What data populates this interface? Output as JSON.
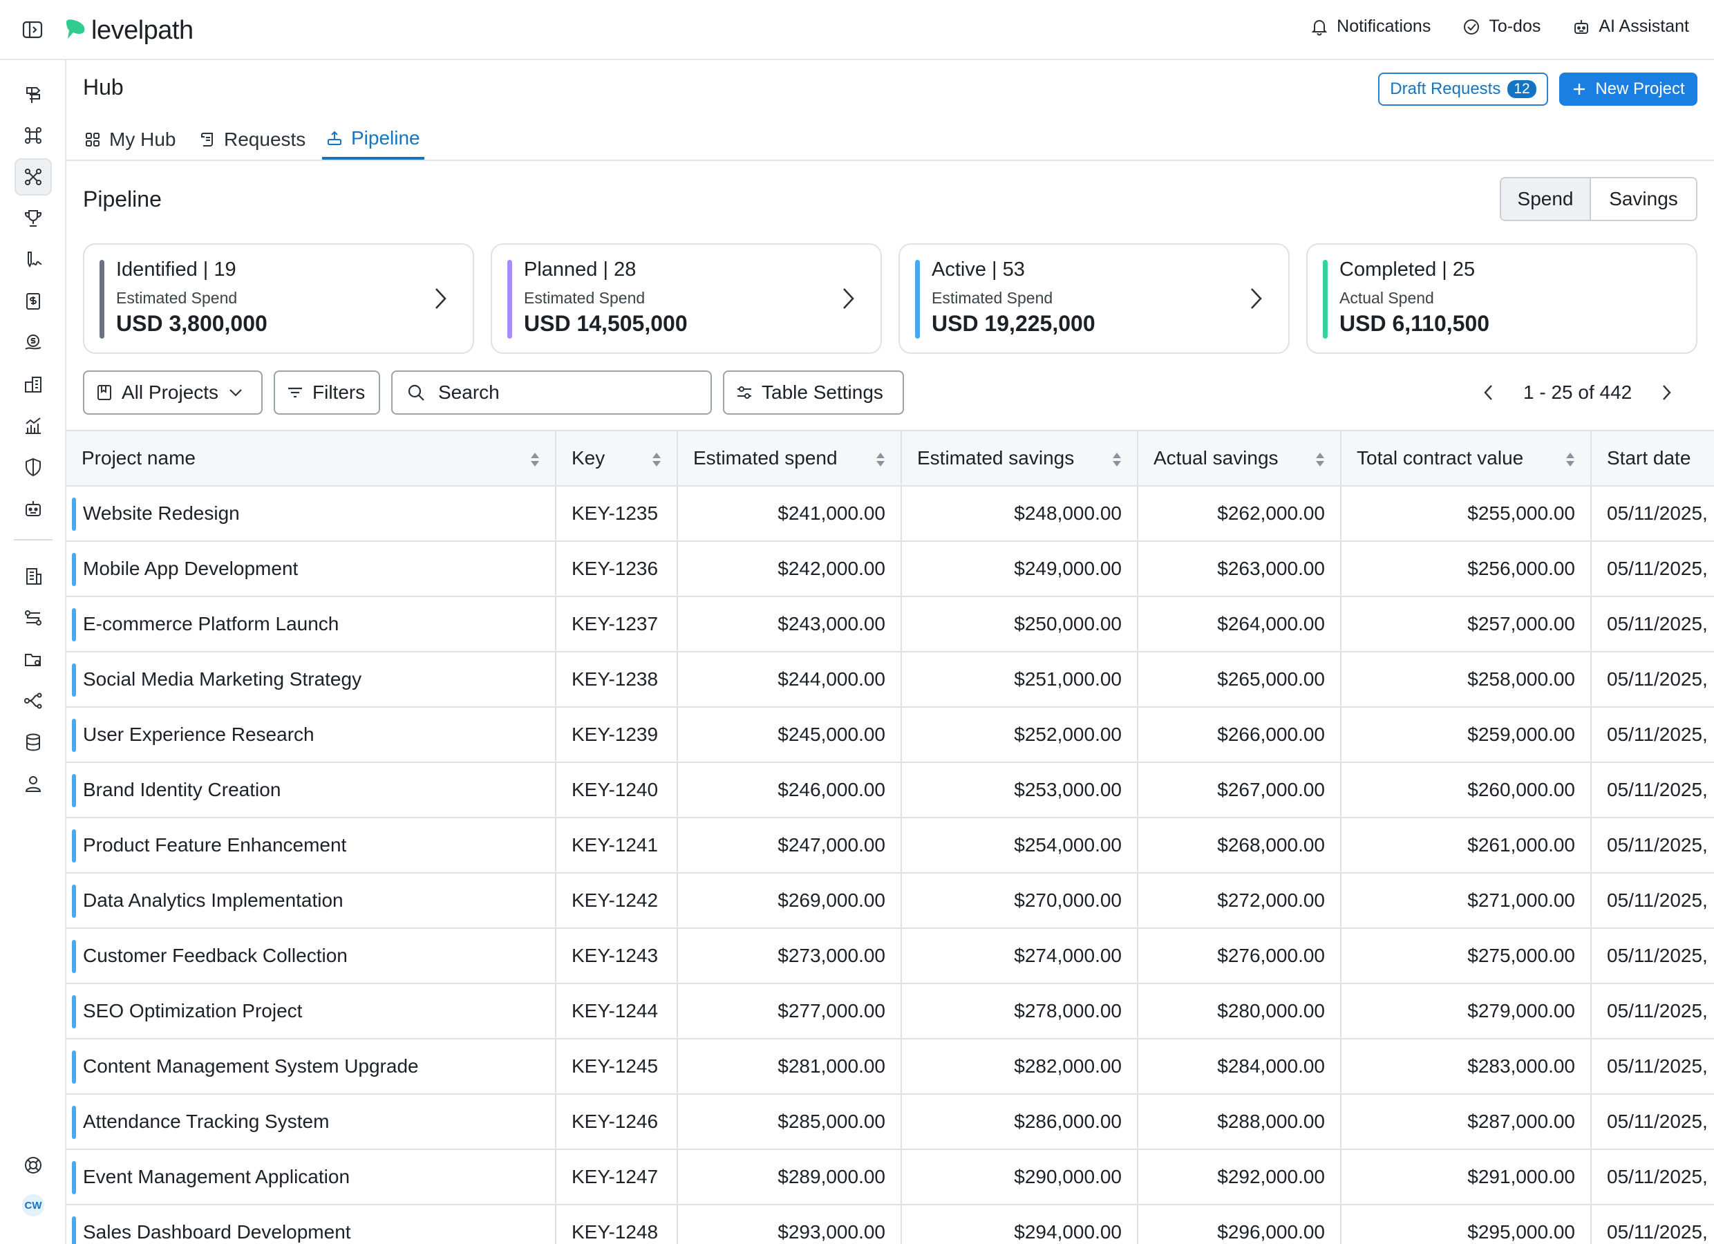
{
  "topbar": {
    "brand": "levelpath",
    "actions": [
      {
        "label": "Notifications",
        "icon": "bell-icon"
      },
      {
        "label": "To-dos",
        "icon": "check-circle-icon"
      },
      {
        "label": "AI Assistant",
        "icon": "robot-icon"
      }
    ]
  },
  "rail": {
    "avatar_initials": "CW",
    "items": [
      "signpost-icon",
      "hub-icon",
      "pipeline-hub-icon",
      "trophy-icon",
      "signature-icon",
      "invoice-icon",
      "spend-icon",
      "buildings-icon",
      "analytics-icon",
      "shield-icon",
      "bot-icon",
      "office-icon",
      "workflow-icon",
      "folder-settings-icon",
      "share-icon",
      "database-icon",
      "user-icon",
      "help-icon"
    ]
  },
  "header": {
    "title": "Hub",
    "draft_requests_label": "Draft Requests",
    "draft_requests_count": "12",
    "new_project_label": "New Project"
  },
  "tabs": [
    {
      "label": "My Hub",
      "icon": "grid-icon",
      "active": false
    },
    {
      "label": "Requests",
      "icon": "scroll-icon",
      "active": false
    },
    {
      "label": "Pipeline",
      "icon": "pipeline-icon",
      "active": true
    }
  ],
  "pipeline": {
    "title": "Pipeline",
    "toggle": {
      "options": [
        "Spend",
        "Savings"
      ],
      "selected": "Spend"
    },
    "cards": [
      {
        "title": "Identified | 19",
        "subtitle": "Estimated Spend",
        "value": "USD 3,800,000",
        "color": "#6b7280"
      },
      {
        "title": "Planned | 28",
        "subtitle": "Estimated Spend",
        "value": "USD 14,505,000",
        "color": "#a78bfa"
      },
      {
        "title": "Active | 53",
        "subtitle": "Estimated Spend",
        "value": "USD 19,225,000",
        "color": "#4aa8ea"
      },
      {
        "title": "Completed | 25",
        "subtitle": "Actual Spend",
        "value": "USD 6,110,500",
        "color": "#34d399"
      }
    ]
  },
  "toolbar": {
    "view_label": "All Projects",
    "filters_label": "Filters",
    "search_placeholder": "Search",
    "table_settings_label": "Table Settings",
    "pagination": "1 - 25 of 442"
  },
  "table": {
    "columns": [
      "Project name",
      "Key",
      "Estimated spend",
      "Estimated savings",
      "Actual savings",
      "Total contract value",
      "Start date"
    ],
    "rows": [
      [
        "Website Redesign",
        "KEY-1235",
        "$241,000.00",
        "$248,000.00",
        "$262,000.00",
        "$255,000.00",
        "05/11/2025,"
      ],
      [
        "Mobile App Development",
        "KEY-1236",
        "$242,000.00",
        "$249,000.00",
        "$263,000.00",
        "$256,000.00",
        "05/11/2025,"
      ],
      [
        "E-commerce Platform Launch",
        "KEY-1237",
        "$243,000.00",
        "$250,000.00",
        "$264,000.00",
        "$257,000.00",
        "05/11/2025,"
      ],
      [
        "Social Media Marketing Strategy",
        "KEY-1238",
        "$244,000.00",
        "$251,000.00",
        "$265,000.00",
        "$258,000.00",
        "05/11/2025,"
      ],
      [
        "User Experience Research",
        "KEY-1239",
        "$245,000.00",
        "$252,000.00",
        "$266,000.00",
        "$259,000.00",
        "05/11/2025,"
      ],
      [
        "Brand Identity Creation",
        "KEY-1240",
        "$246,000.00",
        "$253,000.00",
        "$267,000.00",
        "$260,000.00",
        "05/11/2025,"
      ],
      [
        "Product Feature Enhancement",
        "KEY-1241",
        "$247,000.00",
        "$254,000.00",
        "$268,000.00",
        "$261,000.00",
        "05/11/2025,"
      ],
      [
        "Data Analytics Implementation",
        "KEY-1242",
        "$269,000.00",
        "$270,000.00",
        "$272,000.00",
        "$271,000.00",
        "05/11/2025,"
      ],
      [
        "Customer Feedback Collection",
        "KEY-1243",
        "$273,000.00",
        "$274,000.00",
        "$276,000.00",
        "$275,000.00",
        "05/11/2025,"
      ],
      [
        "SEO Optimization Project",
        "KEY-1244",
        "$277,000.00",
        "$278,000.00",
        "$280,000.00",
        "$279,000.00",
        "05/11/2025,"
      ],
      [
        "Content Management System Upgrade",
        "KEY-1245",
        "$281,000.00",
        "$282,000.00",
        "$284,000.00",
        "$283,000.00",
        "05/11/2025,"
      ],
      [
        "Attendance Tracking System",
        "KEY-1246",
        "$285,000.00",
        "$286,000.00",
        "$288,000.00",
        "$287,000.00",
        "05/11/2025,"
      ],
      [
        "Event Management Application",
        "KEY-1247",
        "$289,000.00",
        "$290,000.00",
        "$292,000.00",
        "$291,000.00",
        "05/11/2025,"
      ],
      [
        "Sales Dashboard Development",
        "KEY-1248",
        "$293,000.00",
        "$294,000.00",
        "$296,000.00",
        "$295,000.00",
        "05/11/2025,"
      ]
    ]
  }
}
